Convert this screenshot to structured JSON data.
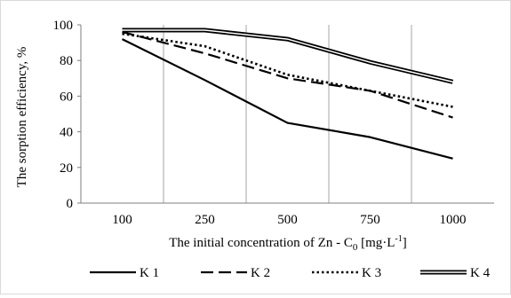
{
  "chart_data": {
    "type": "line",
    "title": "",
    "xlabel": "The initial concentration of Zn - C",
    "xlabel_sub": "0",
    "xlabel_unit": " [mg·L",
    "xlabel_unit_sup": "-1",
    "xlabel_unit_end": "]",
    "ylabel": "The sorption efficiency, %",
    "categories": [
      "100",
      "250",
      "500",
      "750",
      "1000"
    ],
    "ylim": [
      0,
      100
    ],
    "yticks": [
      "0",
      "20",
      "40",
      "60",
      "80",
      "100"
    ],
    "grid": "vertical",
    "legend_position": "bottom",
    "series": [
      {
        "name": "K 1",
        "style": "solid",
        "color": "#000000",
        "values": [
          92,
          69,
          45,
          37,
          25
        ]
      },
      {
        "name": "K 2",
        "style": "dashed",
        "color": "#000000",
        "values": [
          96,
          84,
          70,
          63,
          48
        ]
      },
      {
        "name": "K 3",
        "style": "dotted",
        "color": "#000000",
        "values": [
          95,
          88,
          72,
          63,
          54
        ]
      },
      {
        "name": "K 4",
        "style": "double",
        "color": "#000000",
        "values": [
          97,
          97,
          92,
          79,
          68
        ]
      }
    ]
  }
}
